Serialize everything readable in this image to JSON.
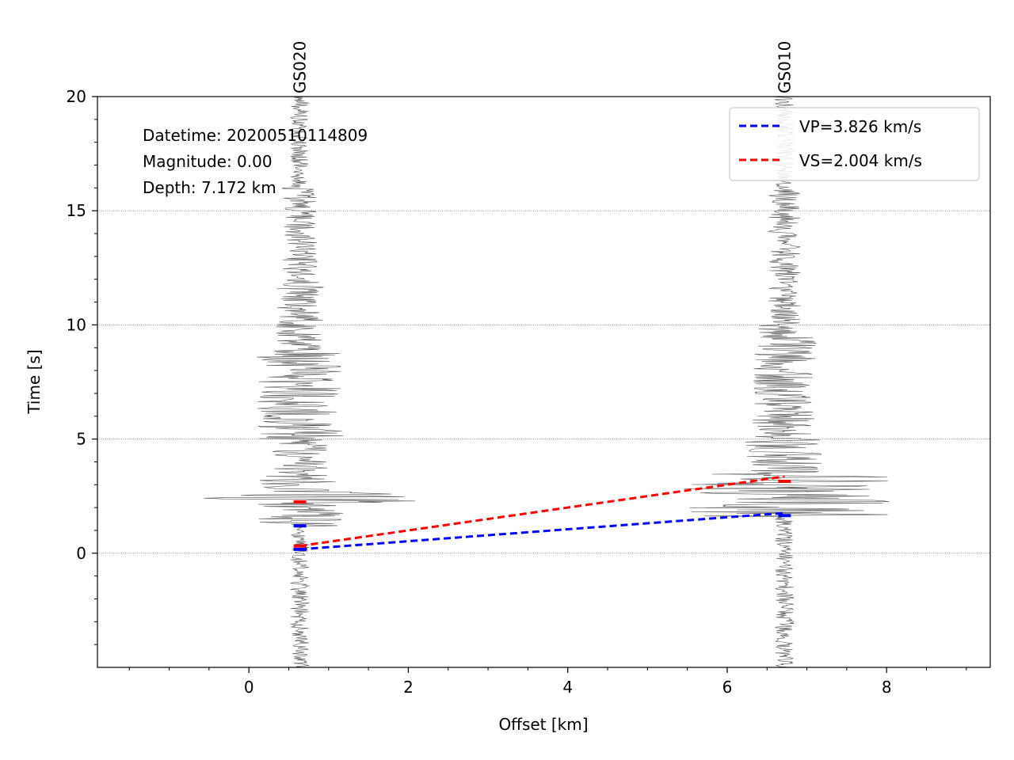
{
  "chart_data": {
    "type": "line",
    "title": "",
    "xlabel": "Offset [km]",
    "ylabel": "Time [s]",
    "xlim": [
      -1.9,
      9.3
    ],
    "ylim": [
      -5,
      20
    ],
    "xticks": [
      0,
      2,
      4,
      6,
      8
    ],
    "yticks": [
      0,
      5,
      10,
      15,
      20
    ],
    "grid": "horizontal dotted at y ticks",
    "annotation": [
      "Datetime: 20200510114809",
      "Magnitude: 0.00",
      "Depth: 7.172 km"
    ],
    "stations": [
      {
        "name": "GS020",
        "offset": 0.64,
        "p_pick": 1.2,
        "s_pick": 2.25
      },
      {
        "name": "GS010",
        "offset": 6.72,
        "p_pick": 1.65,
        "s_pick": 3.15
      }
    ],
    "series": [
      {
        "name": "VP=3.826 km/s",
        "color": "#0000ff",
        "style": "dashed",
        "x": [
          0.64,
          6.72
        ],
        "y": [
          0.17,
          1.76
        ]
      },
      {
        "name": "VS=2.004 km/s",
        "color": "#ff0000",
        "style": "dashed",
        "x": [
          0.64,
          6.72
        ],
        "y": [
          0.32,
          3.36
        ]
      }
    ],
    "legend": "top-right"
  }
}
